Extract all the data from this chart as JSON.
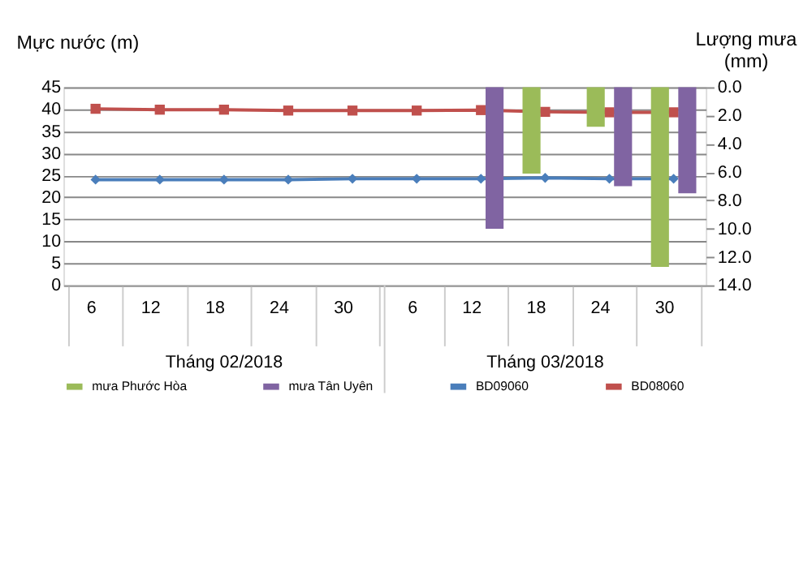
{
  "chart_data": {
    "type": "line",
    "categories": [
      "6",
      "12",
      "18",
      "24",
      "30",
      "6",
      "12",
      "18",
      "24",
      "30"
    ],
    "ylabel": "Mực nước (m)",
    "y2label": "Lượng mưa (mm)",
    "ylim": [
      0,
      45
    ],
    "yticks": [
      0,
      5,
      10,
      15,
      20,
      25,
      30,
      35,
      40,
      45
    ],
    "y2lim": [
      14,
      0
    ],
    "y2ticks": [
      {
        "value": 0,
        "label": "0.0"
      },
      {
        "value": 2,
        "label": "2.0"
      },
      {
        "value": 4,
        "label": "4.0"
      },
      {
        "value": 6,
        "label": "6.0"
      },
      {
        "value": 8,
        "label": "8.0"
      },
      {
        "value": 10,
        "label": "10.0"
      },
      {
        "value": 12,
        "label": "12.0"
      },
      {
        "value": 14,
        "label": "14.0"
      }
    ],
    "series": [
      {
        "name": "mưa Phước Hòa",
        "type": "bar",
        "axis": "y2",
        "color": "#9bbb59",
        "values": [
          null,
          null,
          null,
          null,
          null,
          null,
          null,
          6.1,
          2.8,
          12.7
        ]
      },
      {
        "name": "mưa Tân Uyên",
        "type": "bar",
        "axis": "y2",
        "color": "#8064a2",
        "values": [
          null,
          null,
          null,
          null,
          null,
          null,
          10.0,
          null,
          7.0,
          7.5
        ]
      },
      {
        "name": "BD09060",
        "marker": "diamond",
        "color": "#4a7ebb",
        "values": [
          24.0,
          24.0,
          24.0,
          24.0,
          24.2,
          24.2,
          24.2,
          24.4,
          24.2,
          24.2
        ]
      },
      {
        "name": "BD08060",
        "marker": "square",
        "color": "#c0504d",
        "values": [
          40.1,
          39.9,
          39.9,
          39.7,
          39.7,
          39.7,
          39.8,
          39.4,
          39.3,
          39.3
        ]
      }
    ],
    "annotations": [
      "Tháng 02/2018",
      "Tháng 03/2018"
    ],
    "grid": "y",
    "legend": "bottom"
  }
}
